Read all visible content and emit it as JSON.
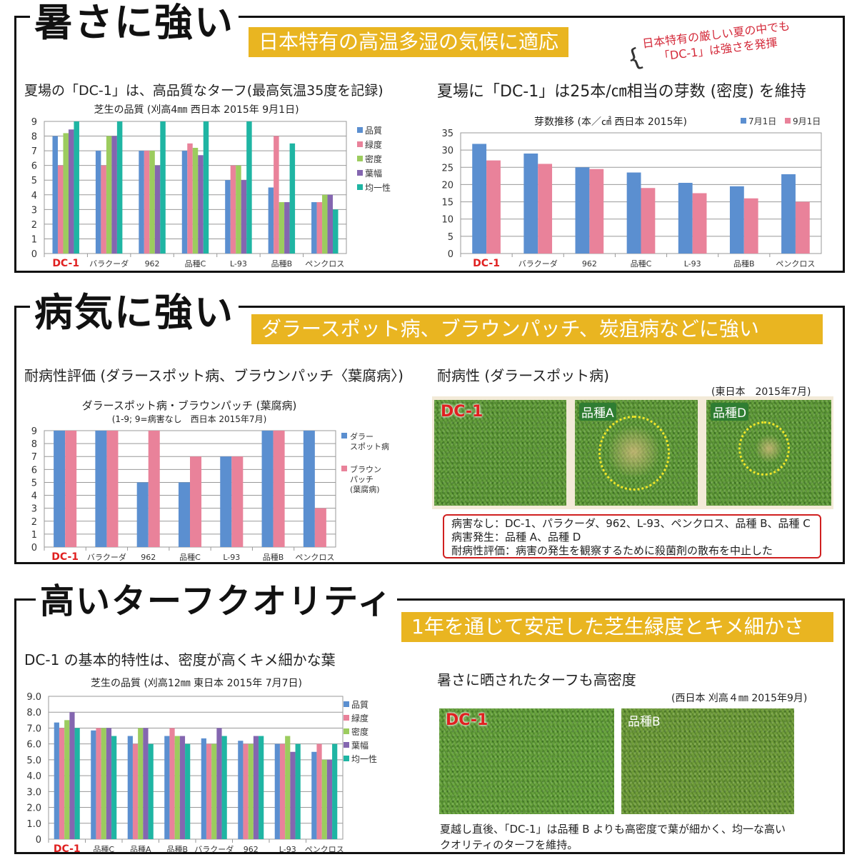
{
  "sections": [
    {
      "title": "暑さに強い",
      "banner": "日本特有の高温多湿の気候に適応",
      "annotation": [
        "日本特有の厳しい夏の中でも",
        "「DC-1」は強さを発揮"
      ],
      "left_heading": "夏場の「DC-1」は、高品質なターフ(最高気温35度を記録)",
      "right_heading": "夏場に「DC-1」は25本/㎝相当の芽数 (密度) を維持"
    },
    {
      "title": "病気に強い",
      "banner": "ダラースポット病、ブラウンパッチ、炭疽病などに強い",
      "left_heading": "耐病性評価 (ダラースポット病、ブラウンパッチ〈葉腐病〉)",
      "right_heading": "耐病性 (ダラースポット病)",
      "photo_note": "(東日本　2015年7月)",
      "photos": [
        "DC-1",
        "品種A",
        "品種D"
      ],
      "result_lines": [
        "病害なし：DC-1、パラクーダ、962、L-93、ペンクロス、品種 B、品種 C",
        "病害発生：品種 A、品種 D",
        "耐病性評価：病害の発生を観察するために殺菌剤の散布を中止した"
      ]
    },
    {
      "title": "高いターフクオリティ",
      "banner": "1年を通じて安定した芝生緑度とキメ細かさ",
      "left_heading": "DC-1 の基本的特性は、密度が高くキメ細かな葉",
      "right_heading": "暑さに晒されたターフも高密度",
      "photo_note": "(西日本 刈高４㎜ 2015年9月)",
      "photos": [
        "DC-1",
        "品種B"
      ],
      "caption": [
        "夏越し直後、「DC-1」は品種 B よりも高密度で葉が細かく、均一な高い",
        "クオリティのターフを維持。"
      ]
    }
  ],
  "chart_data": [
    {
      "type": "bar",
      "title": "芝生の品質 (刈高4㎜ 西日本 2015年 9月1日)",
      "ylim": [
        0,
        9
      ],
      "yticks": [
        "0",
        "1",
        "2",
        "3",
        "4",
        "5",
        "6",
        "7",
        "8",
        "9"
      ],
      "grid": true,
      "legend": "right",
      "categories": [
        "DC-1",
        "バラクーダ",
        "962",
        "品種C",
        "L-93",
        "品種B",
        "ペンクロス"
      ],
      "series": [
        {
          "name": "品質",
          "color": "#5b8fd0",
          "values": [
            8,
            7,
            7,
            7,
            5,
            4.5,
            3.5
          ]
        },
        {
          "name": "緑度",
          "color": "#e9829a",
          "values": [
            6,
            6,
            7,
            7.5,
            6,
            8,
            3.5
          ]
        },
        {
          "name": "密度",
          "color": "#9ccc5e",
          "values": [
            8.2,
            8,
            7,
            7.2,
            6,
            3.5,
            4
          ]
        },
        {
          "name": "葉幅",
          "color": "#8466b0",
          "values": [
            8.45,
            8,
            6,
            6.7,
            5,
            3.5,
            4
          ]
        },
        {
          "name": "均一性",
          "color": "#1fb5a3",
          "values": [
            9,
            9,
            9,
            9,
            9,
            7.5,
            3
          ]
        }
      ]
    },
    {
      "type": "bar",
      "title": "芽数推移 (本／㎠ 西日本 2015年)",
      "ylim": [
        0,
        35
      ],
      "yticks": [
        "0",
        "5",
        "10",
        "15",
        "20",
        "25",
        "30",
        "35"
      ],
      "grid": true,
      "legend": "top-right",
      "categories": [
        "DC-1",
        "バラクーダ",
        "962",
        "品種C",
        "L-93",
        "品種B",
        "ペンクロス"
      ],
      "series": [
        {
          "name": "7月1日",
          "color": "#5b8fd0",
          "values": [
            31.8,
            29,
            25,
            23.5,
            20.5,
            19.5,
            23
          ]
        },
        {
          "name": "9月1日",
          "color": "#e9829a",
          "values": [
            27,
            26,
            24.5,
            19,
            17.5,
            16,
            15
          ]
        }
      ]
    },
    {
      "type": "bar",
      "title": "ダラースポット病・ブラウンパッチ (葉腐病)",
      "subtitle": "(1-9; 9=病害なし　西日本 2015年7月)",
      "ylim": [
        0,
        9
      ],
      "yticks": [
        "0",
        "1",
        "2",
        "3",
        "4",
        "5",
        "6",
        "7",
        "8",
        "9"
      ],
      "grid": true,
      "legend": "right",
      "categories": [
        "DC-1",
        "バラクーダ",
        "962",
        "品種C",
        "L-93",
        "品種B",
        "ペンクロス"
      ],
      "series": [
        {
          "name": "ダラースポット病",
          "color": "#5b8fd0",
          "values": [
            9,
            9,
            5,
            5,
            7,
            9,
            9
          ]
        },
        {
          "name": "ブラウンパッチ(葉腐病)",
          "color": "#e9829a",
          "values": [
            9,
            9,
            9,
            7,
            7,
            9,
            3
          ]
        }
      ]
    },
    {
      "type": "bar",
      "title": "芝生の品質 (刈高12㎜ 東日本 2015年 7月7日)",
      "ylim": [
        0,
        9
      ],
      "yticks": [
        "0",
        "1.0",
        "2.0",
        "3.0",
        "4.0",
        "5.0",
        "6.0",
        "7.0",
        "8.0",
        "9.0"
      ],
      "grid": true,
      "legend": "right",
      "categories": [
        "DC-1",
        "品種C",
        "品種A",
        "品種B",
        "バラクーダ",
        "962",
        "L-93",
        "ペンクロス"
      ],
      "series": [
        {
          "name": "品質",
          "color": "#5b8fd0",
          "values": [
            7.35,
            6.85,
            6.5,
            6.5,
            6.35,
            6.2,
            6,
            5.5
          ]
        },
        {
          "name": "緑度",
          "color": "#e9829a",
          "values": [
            7,
            7,
            6,
            7,
            6,
            6,
            6,
            6
          ]
        },
        {
          "name": "密度",
          "color": "#9ccc5e",
          "values": [
            7.5,
            7,
            7,
            6.5,
            6,
            6,
            6.5,
            5
          ]
        },
        {
          "name": "葉幅",
          "color": "#8466b0",
          "values": [
            8,
            7,
            7,
            6.5,
            7,
            6.5,
            5.5,
            5
          ]
        },
        {
          "name": "均一性",
          "color": "#1fb5a3",
          "values": [
            7,
            6.5,
            6,
            6,
            6.5,
            6.5,
            6,
            6
          ]
        }
      ]
    }
  ]
}
